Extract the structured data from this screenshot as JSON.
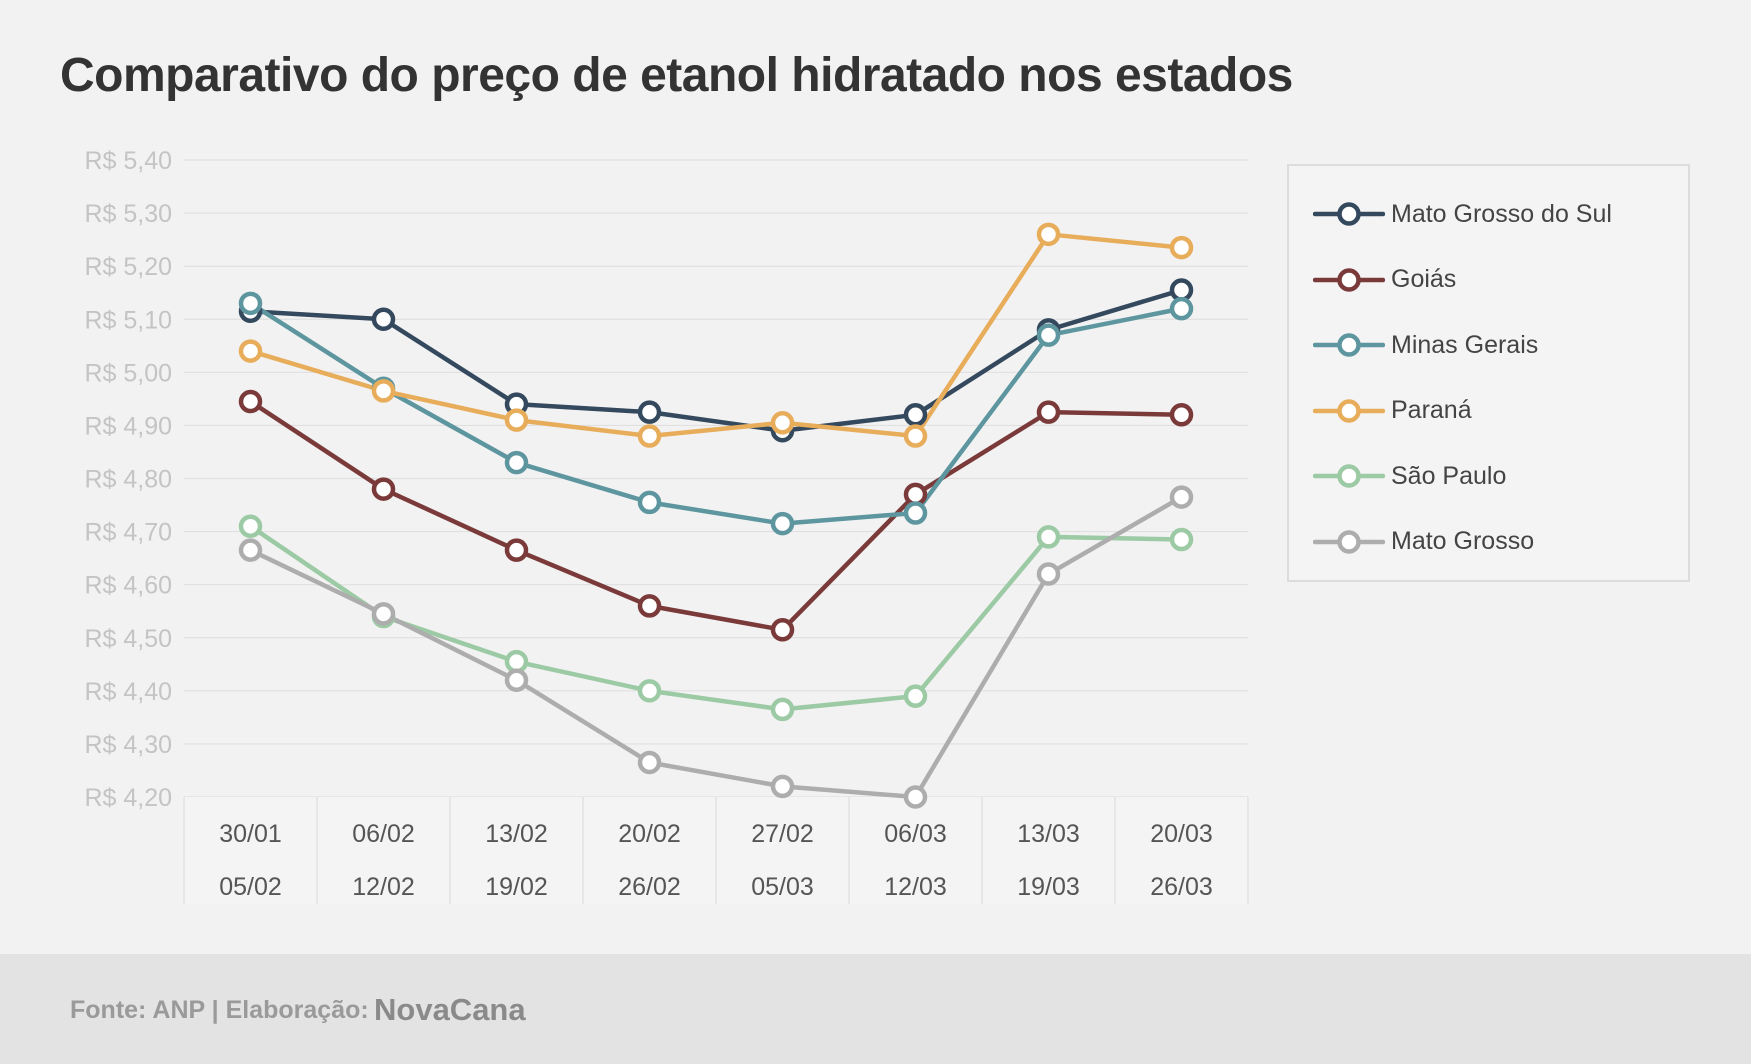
{
  "chart_data": {
    "type": "line",
    "title": "Comparativo do preço de etanol hidratado nos estados",
    "xlabel": "",
    "ylabel": "",
    "ylim": [
      4.2,
      5.4
    ],
    "y_tick_labels": [
      "R$ 5,40",
      "R$ 5,30",
      "R$ 5,20",
      "R$ 5,10",
      "R$ 5,00",
      "R$ 4,90",
      "R$ 4,80",
      "R$ 4,70",
      "R$ 4,60",
      "R$ 4,50",
      "R$ 4,40",
      "R$ 4,30",
      "R$ 4,20"
    ],
    "y_ticks": [
      5.4,
      5.3,
      5.2,
      5.1,
      5.0,
      4.9,
      4.8,
      4.7,
      4.6,
      4.5,
      4.4,
      4.3,
      4.2
    ],
    "categories": [
      {
        "line1": "30/01",
        "line2": "05/02"
      },
      {
        "line1": "06/02",
        "line2": "12/02"
      },
      {
        "line1": "13/02",
        "line2": "19/02"
      },
      {
        "line1": "20/02",
        "line2": "26/02"
      },
      {
        "line1": "27/02",
        "line2": "05/03"
      },
      {
        "line1": "06/03",
        "line2": "12/03"
      },
      {
        "line1": "13/03",
        "line2": "19/03"
      },
      {
        "line1": "20/03",
        "line2": "26/03"
      }
    ],
    "grid": true,
    "legend_position": "right",
    "series": [
      {
        "name": "Mato Grosso do Sul",
        "color": "#34495e",
        "values": [
          5.115,
          5.1,
          4.94,
          4.925,
          4.89,
          4.92,
          5.08,
          5.155
        ]
      },
      {
        "name": "Goiás",
        "color": "#7b3a3a",
        "values": [
          4.945,
          4.78,
          4.665,
          4.56,
          4.515,
          4.77,
          4.925,
          4.92
        ]
      },
      {
        "name": "Minas Gerais",
        "color": "#5e96a0",
        "values": [
          5.13,
          4.97,
          4.83,
          4.755,
          4.715,
          4.735,
          5.07,
          5.12
        ]
      },
      {
        "name": "Paraná",
        "color": "#e8ad5a",
        "values": [
          5.04,
          4.965,
          4.91,
          4.88,
          4.905,
          4.88,
          5.26,
          5.235
        ]
      },
      {
        "name": "São Paulo",
        "color": "#9ccaa4",
        "values": [
          4.71,
          4.54,
          4.455,
          4.4,
          4.365,
          4.39,
          4.69,
          4.685
        ]
      },
      {
        "name": "Mato Grosso",
        "color": "#adadad",
        "values": [
          4.665,
          4.545,
          4.42,
          4.265,
          4.22,
          4.2,
          4.62,
          4.765
        ]
      }
    ]
  },
  "footer": {
    "source": "Fonte: ANP | Elaboração:",
    "brand": "NovaCana"
  }
}
